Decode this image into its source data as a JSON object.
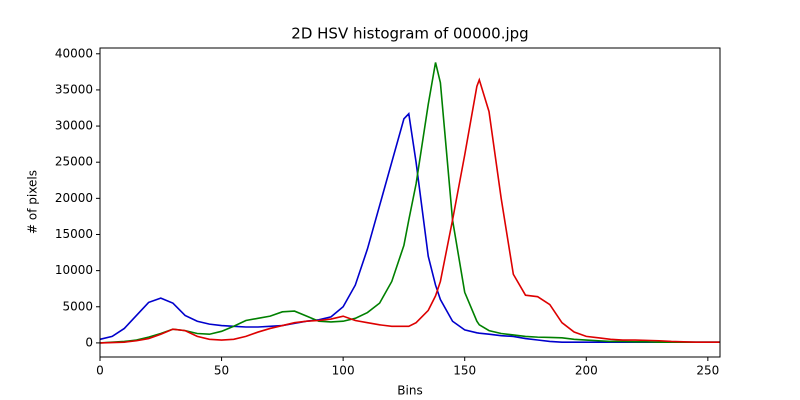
{
  "chart_data": {
    "type": "line",
    "title": "2D HSV histogram of 00000.jpg",
    "x_label": "Bins",
    "y_label": "# of pixels",
    "x": [
      0,
      5,
      10,
      15,
      20,
      25,
      30,
      35,
      40,
      45,
      50,
      55,
      60,
      65,
      70,
      75,
      80,
      85,
      90,
      95,
      100,
      105,
      110,
      115,
      120,
      125,
      127,
      130,
      135,
      138,
      140,
      145,
      150,
      155,
      156,
      160,
      165,
      170,
      175,
      180,
      185,
      190,
      195,
      200,
      205,
      210,
      215,
      220,
      225,
      230,
      235,
      240,
      245,
      250,
      255
    ],
    "series": [
      {
        "color": "#0000cc",
        "values": [
          500,
          900,
          2000,
          3800,
          5600,
          6200,
          5500,
          3800,
          3000,
          2600,
          2400,
          2300,
          2200,
          2200,
          2300,
          2400,
          2700,
          3000,
          3200,
          3600,
          5000,
          8000,
          13000,
          19000,
          25000,
          31000,
          31700,
          25000,
          12000,
          8000,
          6000,
          3000,
          1800,
          1400,
          1350,
          1200,
          1000,
          900,
          600,
          400,
          200,
          100,
          100,
          100,
          100,
          100,
          100,
          100,
          100,
          100,
          100,
          100,
          100,
          100,
          100
        ]
      },
      {
        "color": "#008000",
        "values": [
          0,
          100,
          200,
          400,
          800,
          1300,
          1900,
          1700,
          1300,
          1200,
          1600,
          2300,
          3100,
          3400,
          3700,
          4300,
          4400,
          3700,
          3000,
          2900,
          3000,
          3400,
          4200,
          5500,
          8500,
          13500,
          17000,
          22000,
          33000,
          38800,
          36000,
          17000,
          7000,
          3000,
          2500,
          1700,
          1300,
          1100,
          900,
          800,
          750,
          700,
          500,
          400,
          300,
          200,
          200,
          150,
          150,
          100,
          100,
          100,
          100,
          100,
          100
        ]
      },
      {
        "color": "#dd0000",
        "values": [
          0,
          50,
          100,
          300,
          600,
          1200,
          1900,
          1700,
          900,
          500,
          400,
          500,
          900,
          1500,
          2000,
          2400,
          2800,
          3000,
          3100,
          3300,
          3700,
          3100,
          2800,
          2500,
          2300,
          2300,
          2300,
          2800,
          4500,
          6500,
          8500,
          17000,
          26000,
          35500,
          36400,
          32000,
          20000,
          9500,
          6600,
          6400,
          5300,
          2800,
          1500,
          900,
          700,
          500,
          400,
          400,
          350,
          300,
          200,
          150,
          100,
          100,
          100
        ]
      }
    ],
    "xlim": [
      0,
      255
    ],
    "ylim": [
      -1950,
      40800
    ],
    "xticks": [
      0,
      50,
      100,
      150,
      200,
      250
    ],
    "yticks": [
      0,
      5000,
      10000,
      15000,
      20000,
      25000,
      30000,
      35000,
      40000
    ]
  }
}
